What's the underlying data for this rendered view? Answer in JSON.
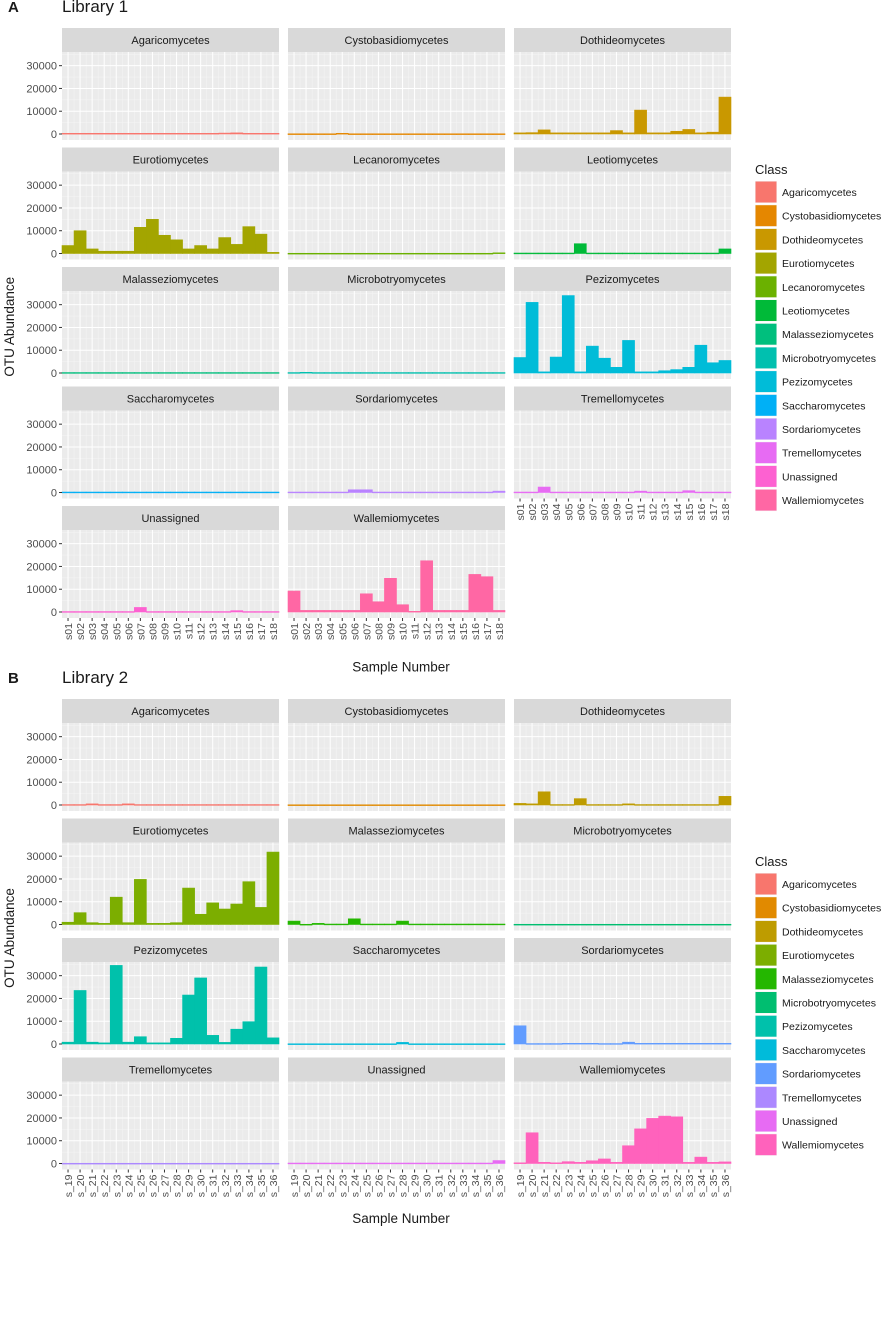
{
  "panels": [
    {
      "letter": "A",
      "title": "Library 1",
      "ylabel": "OTU Abundance",
      "xlabel": "Sample Number",
      "legend_title": "Class",
      "samples": [
        "s01",
        "s02",
        "s03",
        "s04",
        "s05",
        "s06",
        "s07",
        "s08",
        "s09",
        "s10",
        "s11",
        "s12",
        "s13",
        "s14",
        "s15",
        "s16",
        "s17",
        "s18"
      ],
      "yticks": [
        0,
        10000,
        20000,
        30000
      ],
      "legend": [
        {
          "name": "Agaricomycetes",
          "color": "#F8766D"
        },
        {
          "name": "Cystobasidiomycetes",
          "color": "#E58700"
        },
        {
          "name": "Dothideomycetes",
          "color": "#C99800"
        },
        {
          "name": "Eurotiomycetes",
          "color": "#A3A500"
        },
        {
          "name": "Lecanoromycetes",
          "color": "#6BB100"
        },
        {
          "name": "Leotiomycetes",
          "color": "#00BA38"
        },
        {
          "name": "Malasseziomycetes",
          "color": "#00BF7D"
        },
        {
          "name": "Microbotryomycetes",
          "color": "#00C0AF"
        },
        {
          "name": "Pezizomycetes",
          "color": "#00BCD8"
        },
        {
          "name": "Saccharomycetes",
          "color": "#00B0F6"
        },
        {
          "name": "Sordariomycetes",
          "color": "#B983FF"
        },
        {
          "name": "Tremellomycetes",
          "color": "#E76BF3"
        },
        {
          "name": "Unassigned",
          "color": "#FD61D1"
        },
        {
          "name": "Wallemiomycetes",
          "color": "#FF67A4"
        }
      ]
    },
    {
      "letter": "B",
      "title": "Library 2",
      "ylabel": "OTU Abundance",
      "xlabel": "Sample Number",
      "legend_title": "Class",
      "samples": [
        "s_19",
        "s_20",
        "s_21",
        "s_22",
        "s_23",
        "s_24",
        "s_25",
        "s_26",
        "s_27",
        "s_28",
        "s_29",
        "s_30",
        "s_31",
        "s_32",
        "s_33",
        "s_34",
        "s_35",
        "s_36"
      ],
      "yticks": [
        0,
        10000,
        20000,
        30000
      ],
      "legend": [
        {
          "name": "Agaricomycetes",
          "color": "#F8766D"
        },
        {
          "name": "Cystobasidiomycetes",
          "color": "#E18A00"
        },
        {
          "name": "Dothideomycetes",
          "color": "#BE9C00"
        },
        {
          "name": "Eurotiomycetes",
          "color": "#7CAE00"
        },
        {
          "name": "Malasseziomycetes",
          "color": "#24B700"
        },
        {
          "name": "Microbotryomycetes",
          "color": "#00BE70"
        },
        {
          "name": "Pezizomycetes",
          "color": "#00C1AB"
        },
        {
          "name": "Saccharomycetes",
          "color": "#00BBDA"
        },
        {
          "name": "Sordariomycetes",
          "color": "#619CFF"
        },
        {
          "name": "Tremellomycetes",
          "color": "#AC88FF"
        },
        {
          "name": "Unassigned",
          "color": "#E76BF3"
        },
        {
          "name": "Wallemiomycetes",
          "color": "#FF62BC"
        }
      ]
    }
  ],
  "chart_data": [
    {
      "type": "bar",
      "title": "Library 1",
      "xlabel": "Sample Number",
      "ylabel": "OTU Abundance",
      "ylim": [
        0,
        36000
      ],
      "categories": [
        "s01",
        "s02",
        "s03",
        "s04",
        "s05",
        "s06",
        "s07",
        "s08",
        "s09",
        "s10",
        "s11",
        "s12",
        "s13",
        "s14",
        "s15",
        "s16",
        "s17",
        "s18"
      ],
      "series": [
        {
          "name": "Agaricomycetes",
          "values": [
            300,
            300,
            300,
            300,
            300,
            300,
            300,
            300,
            300,
            300,
            300,
            300,
            300,
            400,
            500,
            300,
            300,
            300
          ]
        },
        {
          "name": "Cystobasidiomycetes",
          "values": [
            100,
            100,
            100,
            100,
            300,
            100,
            100,
            100,
            100,
            100,
            100,
            100,
            100,
            100,
            100,
            100,
            100,
            100
          ]
        },
        {
          "name": "Dothideomycetes",
          "values": [
            500,
            600,
            1800,
            500,
            500,
            500,
            500,
            500,
            1500,
            500,
            10500,
            500,
            500,
            1200,
            2000,
            500,
            800,
            16200
          ]
        },
        {
          "name": "Eurotiomycetes",
          "values": [
            3500,
            10000,
            2000,
            1000,
            1000,
            1000,
            11500,
            15000,
            8000,
            6000,
            2000,
            3500,
            2000,
            7000,
            4000,
            11800,
            8500,
            500
          ]
        },
        {
          "name": "Lecanoromycetes",
          "values": [
            100,
            100,
            100,
            100,
            100,
            100,
            100,
            100,
            100,
            100,
            100,
            100,
            100,
            100,
            100,
            100,
            100,
            300
          ]
        },
        {
          "name": "Leotiomycetes",
          "values": [
            200,
            200,
            200,
            200,
            200,
            4300,
            200,
            200,
            200,
            200,
            200,
            200,
            200,
            200,
            200,
            200,
            200,
            2000
          ]
        },
        {
          "name": "Malasseziomycetes",
          "values": [
            200,
            200,
            200,
            200,
            200,
            200,
            200,
            200,
            200,
            200,
            200,
            200,
            200,
            200,
            200,
            200,
            200,
            200
          ]
        },
        {
          "name": "Microbotryomycetes",
          "values": [
            200,
            300,
            200,
            200,
            200,
            200,
            200,
            200,
            200,
            200,
            200,
            200,
            200,
            200,
            200,
            200,
            200,
            200
          ]
        },
        {
          "name": "Pezizomycetes",
          "values": [
            6800,
            31000,
            500,
            7000,
            34000,
            500,
            11800,
            6500,
            2500,
            14300,
            500,
            500,
            1000,
            1500,
            2500,
            12200,
            4500,
            5500
          ]
        },
        {
          "name": "Saccharomycetes",
          "values": [
            200,
            200,
            200,
            200,
            200,
            200,
            200,
            200,
            200,
            200,
            200,
            200,
            200,
            200,
            200,
            200,
            200,
            200
          ]
        },
        {
          "name": "Sordariomycetes",
          "values": [
            200,
            200,
            200,
            200,
            200,
            1200,
            1200,
            200,
            200,
            200,
            200,
            200,
            200,
            200,
            200,
            200,
            200,
            600
          ]
        },
        {
          "name": "Tremellomycetes",
          "values": [
            200,
            200,
            2400,
            200,
            200,
            200,
            200,
            200,
            200,
            200,
            600,
            200,
            200,
            200,
            800,
            200,
            200,
            200
          ]
        },
        {
          "name": "Unassigned",
          "values": [
            200,
            200,
            200,
            200,
            200,
            200,
            2000,
            200,
            200,
            200,
            200,
            200,
            200,
            200,
            600,
            200,
            200,
            200
          ]
        },
        {
          "name": "Wallemiomycetes",
          "values": [
            9200,
            700,
            700,
            700,
            700,
            700,
            8000,
            4500,
            14800,
            3200,
            300,
            22500,
            700,
            700,
            700,
            16500,
            15500,
            700
          ]
        }
      ]
    },
    {
      "type": "bar",
      "title": "Library 2",
      "xlabel": "Sample Number",
      "ylabel": "OTU Abundance",
      "ylim": [
        0,
        36000
      ],
      "categories": [
        "s_19",
        "s_20",
        "s_21",
        "s_22",
        "s_23",
        "s_24",
        "s_25",
        "s_26",
        "s_27",
        "s_28",
        "s_29",
        "s_30",
        "s_31",
        "s_32",
        "s_33",
        "s_34",
        "s_35",
        "s_36"
      ],
      "series": [
        {
          "name": "Agaricomycetes",
          "values": [
            200,
            200,
            500,
            200,
            200,
            500,
            200,
            200,
            200,
            200,
            200,
            200,
            200,
            200,
            200,
            200,
            200,
            200
          ]
        },
        {
          "name": "Cystobasidiomycetes",
          "values": [
            100,
            100,
            100,
            100,
            100,
            100,
            100,
            100,
            100,
            100,
            100,
            100,
            100,
            100,
            100,
            100,
            100,
            100
          ]
        },
        {
          "name": "Dothideomycetes",
          "values": [
            700,
            500,
            5800,
            200,
            200,
            2800,
            200,
            200,
            200,
            500,
            200,
            200,
            200,
            200,
            200,
            200,
            200,
            3800
          ]
        },
        {
          "name": "Eurotiomycetes",
          "values": [
            1000,
            5200,
            800,
            500,
            12000,
            800,
            19800,
            500,
            500,
            800,
            16000,
            4500,
            9500,
            6800,
            9000,
            18800,
            7500,
            31800
          ]
        },
        {
          "name": "Malasseziomycetes",
          "values": [
            1500,
            100,
            500,
            200,
            200,
            2500,
            200,
            200,
            200,
            1500,
            200,
            200,
            200,
            200,
            200,
            200,
            200,
            200
          ]
        },
        {
          "name": "Microbotryomycetes",
          "values": [
            100,
            100,
            100,
            100,
            100,
            100,
            100,
            100,
            100,
            100,
            100,
            100,
            100,
            100,
            100,
            100,
            100,
            100
          ]
        },
        {
          "name": "Pezizomycetes",
          "values": [
            800,
            23500,
            800,
            500,
            34500,
            800,
            3200,
            500,
            500,
            2500,
            21500,
            29000,
            3800,
            700,
            6500,
            9800,
            33800,
            2700
          ]
        },
        {
          "name": "Saccharomycetes",
          "values": [
            100,
            100,
            100,
            100,
            100,
            100,
            100,
            100,
            100,
            700,
            100,
            100,
            100,
            100,
            100,
            100,
            100,
            100
          ]
        },
        {
          "name": "Sordariomycetes",
          "values": [
            8000,
            200,
            200,
            200,
            300,
            300,
            300,
            200,
            200,
            800,
            300,
            300,
            300,
            300,
            300,
            300,
            300,
            300
          ]
        },
        {
          "name": "Tremellomycetes",
          "values": [
            100,
            100,
            100,
            100,
            100,
            100,
            100,
            100,
            100,
            100,
            100,
            100,
            100,
            100,
            100,
            100,
            100,
            100
          ]
        },
        {
          "name": "Unassigned",
          "values": [
            200,
            200,
            200,
            200,
            200,
            200,
            200,
            200,
            200,
            200,
            200,
            200,
            200,
            200,
            200,
            200,
            200,
            1300
          ]
        },
        {
          "name": "Wallemiomycetes",
          "values": [
            300,
            13500,
            500,
            300,
            800,
            500,
            1200,
            2000,
            500,
            7800,
            15200,
            19800,
            20800,
            20500,
            500,
            2800,
            500,
            700
          ]
        }
      ]
    }
  ]
}
